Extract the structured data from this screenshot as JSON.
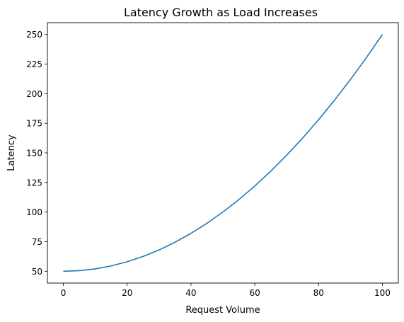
{
  "chart_data": {
    "type": "line",
    "title": "Latency Growth as Load Increases",
    "xlabel": "Request Volume",
    "ylabel": "Latency",
    "xlim": [
      -5,
      105
    ],
    "ylim": [
      40,
      260
    ],
    "xticks": [
      0,
      20,
      40,
      60,
      80,
      100
    ],
    "yticks": [
      50,
      75,
      100,
      125,
      150,
      175,
      200,
      225,
      250
    ],
    "grid": false,
    "series": [
      {
        "color": "#1f77b4",
        "x": [
          0,
          5,
          10,
          15,
          20,
          25,
          30,
          35,
          40,
          45,
          50,
          55,
          60,
          65,
          70,
          75,
          80,
          85,
          90,
          95,
          100
        ],
        "y": [
          50,
          50.5,
          52,
          54.5,
          58,
          62.5,
          68,
          74.5,
          82,
          90.5,
          100,
          110.5,
          122,
          134.5,
          148,
          162.5,
          178,
          194.5,
          212,
          230.5,
          250
        ]
      }
    ]
  }
}
